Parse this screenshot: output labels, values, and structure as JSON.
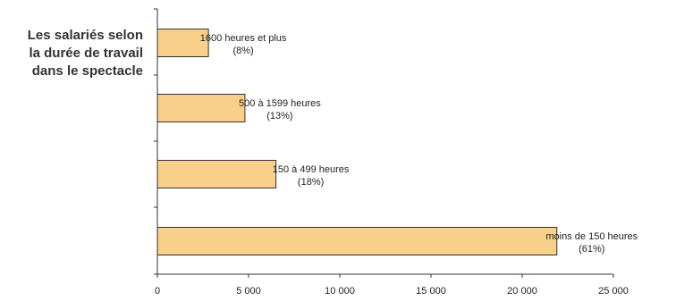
{
  "chart_data": {
    "type": "bar",
    "orientation": "horizontal",
    "title_lines": [
      "Les salariés selon",
      "la durée de travail",
      "dans le spectacle"
    ],
    "categories": [
      {
        "label": "1600 heures et plus",
        "pct": "(8%)"
      },
      {
        "label": "500 à 1599 heures",
        "pct": "(13%)"
      },
      {
        "label": "150 à 499 heures",
        "pct": "(18%)"
      },
      {
        "label": "moins de 150 heures",
        "pct": "(61%)"
      }
    ],
    "values": [
      2800,
      4800,
      6500,
      21900
    ],
    "xlim": [
      0,
      25000
    ],
    "xticks": [
      0,
      5000,
      10000,
      15000,
      20000,
      25000
    ],
    "xtick_labels": [
      "0",
      "5 000",
      "10 000",
      "15 000",
      "20 000",
      "25 000"
    ],
    "grid": false,
    "bar_color": "#f8d089",
    "bar_edge_color": "#333333",
    "axis_color": "#333333",
    "label_color": "#222222"
  }
}
